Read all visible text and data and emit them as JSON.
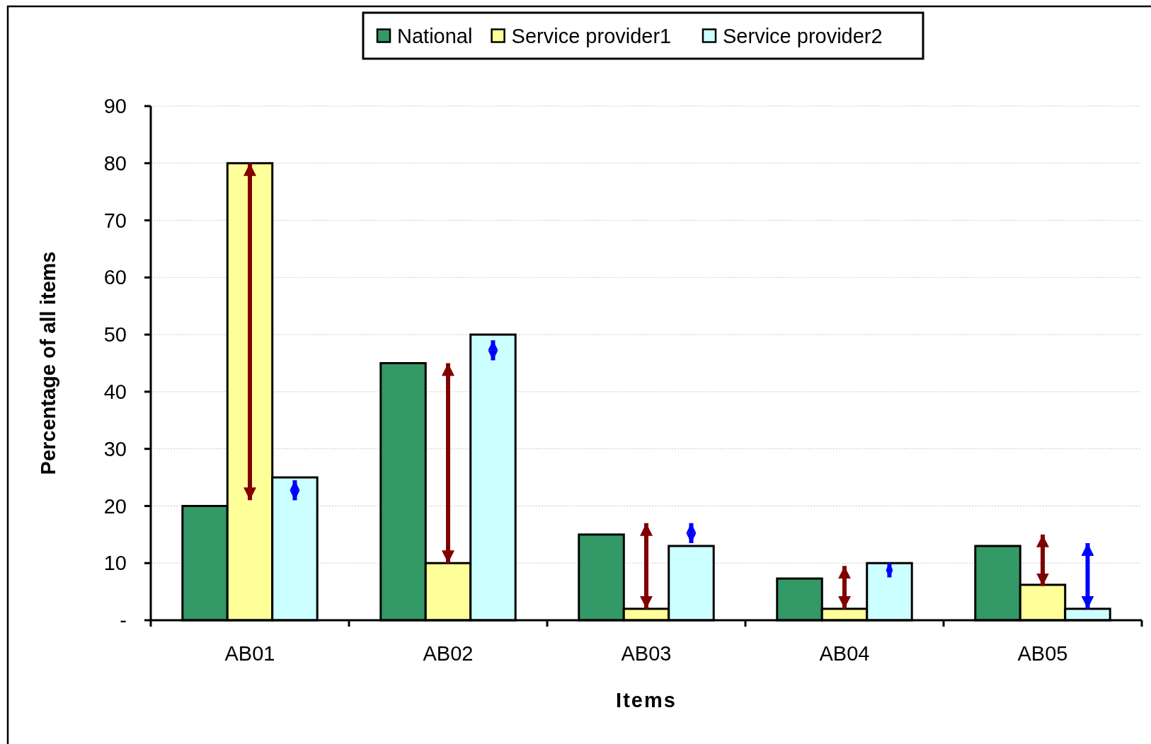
{
  "chart_data": {
    "type": "bar",
    "xlabel": "Items",
    "ylabel": "Percentage of all items",
    "categories": [
      "AB01",
      "AB02",
      "AB03",
      "AB04",
      "AB05"
    ],
    "series": [
      {
        "name": "National",
        "color": "#339966",
        "values": [
          20,
          45,
          15,
          7.3,
          13
        ]
      },
      {
        "name": "Service provider1",
        "color": "#ffff99",
        "values": [
          80,
          10,
          2,
          2,
          6.2
        ],
        "errors": [
          [
            21,
            80
          ],
          [
            10,
            45
          ],
          [
            2,
            17
          ],
          [
            2,
            9.5
          ],
          [
            6,
            15
          ]
        ]
      },
      {
        "name": "Service provider2",
        "color": "#ccffff",
        "values": [
          25,
          50,
          13,
          10,
          2
        ],
        "errors": [
          [
            21,
            24.5
          ],
          [
            45.5,
            49
          ],
          [
            13.5,
            17
          ],
          [
            7.5,
            10
          ],
          [
            2,
            13.5
          ]
        ]
      }
    ],
    "ylim": [
      0,
      90
    ],
    "yticks": [
      {
        "value": 0,
        "label": "-"
      },
      10,
      20,
      30,
      40,
      50,
      60,
      70,
      80,
      90
    ],
    "grid": "y",
    "legend": "top"
  }
}
